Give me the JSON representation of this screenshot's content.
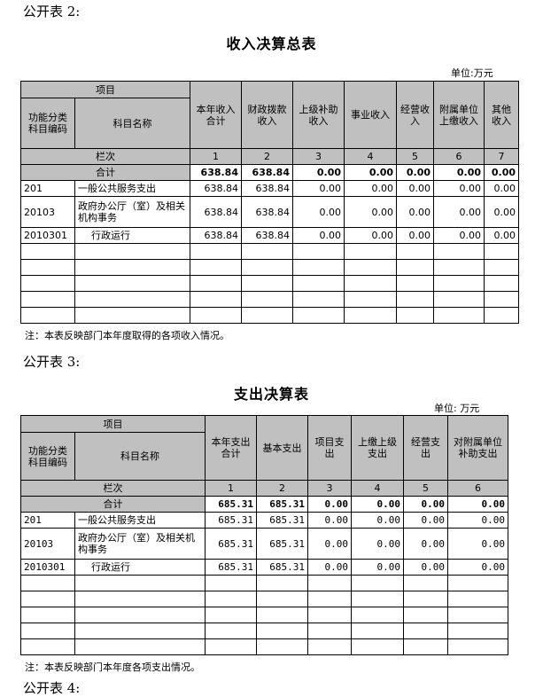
{
  "sections": [
    "公开表 2:",
    "公开表 3:",
    "公开表 4:"
  ],
  "t1": {
    "title": "收入决算总表",
    "unit": "单位:万元",
    "item": "项目",
    "code_h": "功能分类科目编码",
    "name_h": "科目名称",
    "cols": [
      "本年收入合计",
      "财政拨款收入",
      "上级补助收入",
      "事业收入",
      "经营收入",
      "附属单位上缴收入",
      "其他收入"
    ],
    "lanci": "栏次",
    "nums": [
      "1",
      "2",
      "3",
      "4",
      "5",
      "6",
      "7"
    ],
    "total_label": "合计",
    "total": [
      "638.84",
      "638.84",
      "0.00",
      "0.00",
      "0.00",
      "0.00",
      "0.00"
    ],
    "rows": [
      {
        "code": "201",
        "name": "一般公共服务支出",
        "v": [
          "638.84",
          "638.84",
          "0.00",
          "0.00",
          "0.00",
          "0.00",
          "0.00"
        ]
      },
      {
        "code": "20103",
        "name": "政府办公厅（室）及相关机构事务",
        "v": [
          "638.84",
          "638.84",
          "0.00",
          "0.00",
          "0.00",
          "0.00",
          "0.00"
        ]
      },
      {
        "code": "2010301",
        "name": "行政运行",
        "v": [
          "638.84",
          "638.84",
          "0.00",
          "0.00",
          "0.00",
          "0.00",
          "0.00"
        ]
      }
    ],
    "note": "注：本表反映部门本年度取得的各项收入情况。"
  },
  "t2": {
    "title": "支出决算表",
    "unit": "单位: 万元",
    "item": "项目",
    "code_h": "功能分类科目编码",
    "name_h": "科目名称",
    "cols": [
      "本年支出合计",
      "基本支出",
      "项目支出",
      "上缴上级支出",
      "经营支出",
      "对附属单位补助支出"
    ],
    "lanci": "栏次",
    "nums": [
      "1",
      "2",
      "3",
      "4",
      "5",
      "6"
    ],
    "total_label": "合计",
    "total": [
      "685.31",
      "685.31",
      "0.00",
      "0.00",
      "0.00",
      "0.00"
    ],
    "rows": [
      {
        "code": "201",
        "name": "一般公共服务支出",
        "v": [
          "685.31",
          "685.31",
          "0.00",
          "0.00",
          "0.00",
          "0.00"
        ]
      },
      {
        "code": "20103",
        "name": "政府办公厅（室）及相关机构事务",
        "v": [
          "685.31",
          "685.31",
          "0.00",
          "0.00",
          "0.00",
          "0.00"
        ]
      },
      {
        "code": "2010301",
        "name": "行政运行",
        "v": [
          "685.31",
          "685.31",
          "0.00",
          "0.00",
          "0.00",
          "0.00"
        ]
      }
    ],
    "note": "注：本表反映部门本年度各项支出情况。"
  }
}
